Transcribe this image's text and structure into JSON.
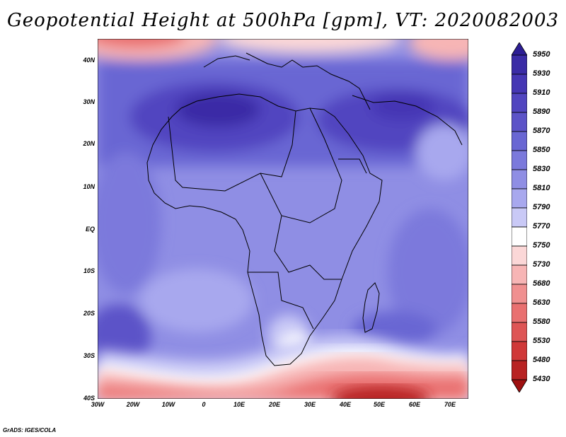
{
  "title": "Geopotential Height at 500hPa [gpm], VT: 2020082003",
  "credit": "GrADS: IGES/COLA",
  "lat_labels": [
    "40N",
    "30N",
    "20N",
    "10N",
    "EQ",
    "10S",
    "20S",
    "30S",
    "40S"
  ],
  "lon_labels": [
    "30W",
    "20W",
    "10W",
    "0",
    "10E",
    "20E",
    "30E",
    "40E",
    "50E",
    "60E",
    "70E"
  ],
  "colorbar": {
    "labels": [
      "5950",
      "5930",
      "5910",
      "5890",
      "5870",
      "5850",
      "5830",
      "5810",
      "5790",
      "5770",
      "5750",
      "5730",
      "5680",
      "5630",
      "5580",
      "5530",
      "5480",
      "5430"
    ],
    "colors": [
      "#2c1d94",
      "#3a2ba6",
      "#4536b4",
      "#5145c0",
      "#5c53c8",
      "#6966d3",
      "#7b79dc",
      "#8f8ee4",
      "#a8a8ee",
      "#c9c9f6",
      "#ffffff",
      "#fbd7d7",
      "#f7b5b5",
      "#f09090",
      "#e97070",
      "#de5555",
      "#d03838",
      "#b82222",
      "#9e1010"
    ]
  }
}
